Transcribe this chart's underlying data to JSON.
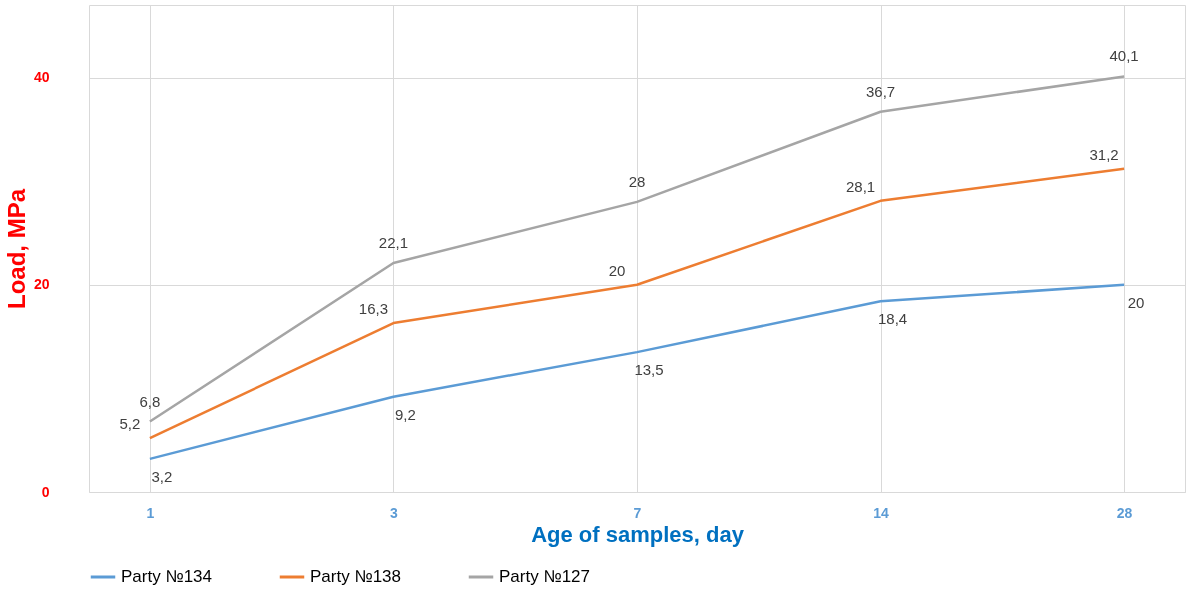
{
  "chart_data": {
    "type": "line",
    "xlabel": "Age of samples, day",
    "ylabel": "Load, MPa",
    "categories": [
      "1",
      "3",
      "7",
      "14",
      "28"
    ],
    "series": [
      {
        "name": "Party №134",
        "color": "#5b9bd5",
        "values": [
          3.2,
          9.2,
          13.5,
          18.4,
          20
        ],
        "value_labels": [
          "3,2",
          "9,2",
          "13,5",
          "18,4",
          "20"
        ]
      },
      {
        "name": "Party №138",
        "color": "#ed7d31",
        "values": [
          5.2,
          16.3,
          20,
          28.1,
          31.2
        ],
        "value_labels": [
          "5,2",
          "16,3",
          "20",
          "28,1",
          "31,2"
        ]
      },
      {
        "name": "Party №127",
        "color": "#a5a5a5",
        "values": [
          6.8,
          22.1,
          28,
          36.7,
          40.1
        ],
        "value_labels": [
          "6,8",
          "22,1",
          "28",
          "36,7",
          "40,1"
        ]
      }
    ],
    "ylim": [
      0,
      47
    ],
    "yticks": [
      0,
      20,
      40
    ],
    "grid": true,
    "legend": "bottom",
    "marker": "none",
    "line_style": "solid"
  }
}
